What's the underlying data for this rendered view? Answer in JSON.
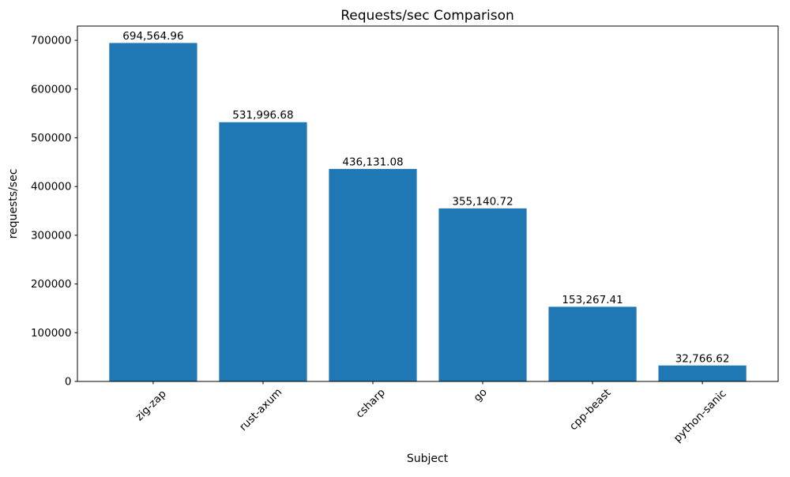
{
  "figure": {
    "background": "#ffffff"
  },
  "chart_data": {
    "type": "bar",
    "title": "Requests/sec Comparison",
    "xlabel": "Subject",
    "ylabel": "requests/sec",
    "categories": [
      "zig-zap",
      "rust-axum",
      "csharp",
      "go",
      "cpp-beast",
      "python-sanic"
    ],
    "values": [
      694564.96,
      531996.68,
      436131.08,
      355140.72,
      153267.41,
      32766.62
    ],
    "bar_labels": [
      "694,564.96",
      "531,996.68",
      "436,131.08",
      "355,140.72",
      "153,267.41",
      "32,766.62"
    ],
    "bar_color": "#1f77b4",
    "axis_color": "#000000",
    "text_color": "#000000",
    "yticks": [
      0,
      100000,
      200000,
      300000,
      400000,
      500000,
      600000,
      700000
    ],
    "ytick_labels": [
      "0",
      "100000",
      "200000",
      "300000",
      "400000",
      "500000",
      "600000",
      "700000"
    ],
    "ylim": [
      0,
      729293
    ],
    "xtick_rotation_deg": 45,
    "grid": false,
    "legend_position": "none"
  }
}
